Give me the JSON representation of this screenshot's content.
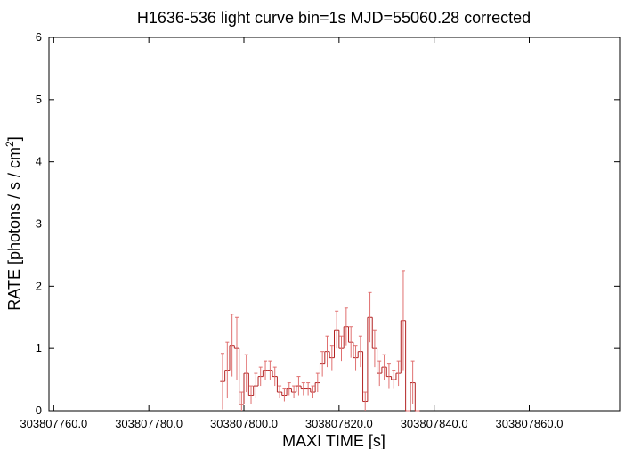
{
  "chart_data": {
    "type": "errorstep",
    "title": "H1636-536 light curve bin=1s MJD=55060.28 corrected",
    "x_label": "MAXI TIME [s]",
    "y_label": {
      "text": "RATE [photons / s / cm",
      "sup": "2",
      "end": "]"
    },
    "x": [
      303807795.5,
      303807796.5,
      303807797.5,
      303807798.5,
      303807799.5,
      303807800.5,
      303807801.5,
      303807802.5,
      303807803.5,
      303807804.5,
      303807805.5,
      303807806.5,
      303807807.5,
      303807808.5,
      303807809.5,
      303807810.5,
      303807811.5,
      303807812.5,
      303807813.5,
      303807814.5,
      303807815.5,
      303807816.5,
      303807817.5,
      303807818.5,
      303807819.5,
      303807820.5,
      303807821.5,
      303807822.5,
      303807823.5,
      303807824.5,
      303807825.5,
      303807826.5,
      303807827.5,
      303807828.5,
      303807829.5,
      303807830.5,
      303807831.5,
      303807832.5,
      303807833.5,
      303807834.5,
      303807835.5,
      303807836.5
    ],
    "values": [
      0.47,
      0.65,
      1.05,
      1.0,
      0.1,
      0.6,
      0.25,
      0.4,
      0.55,
      0.65,
      0.65,
      0.55,
      0.3,
      0.25,
      0.35,
      0.3,
      0.4,
      0.35,
      0.35,
      0.3,
      0.45,
      0.75,
      0.95,
      0.85,
      1.3,
      1.0,
      1.35,
      1.1,
      0.85,
      0.95,
      0.15,
      1.5,
      1.0,
      0.6,
      0.7,
      0.55,
      0.5,
      0.6,
      1.45,
      0.0,
      0.45,
      0.0
    ],
    "errors": [
      0.45,
      0.45,
      0.5,
      0.5,
      0.2,
      0.3,
      0.15,
      0.2,
      0.15,
      0.15,
      0.15,
      0.15,
      0.1,
      0.1,
      0.1,
      0.1,
      0.15,
      0.1,
      0.1,
      0.1,
      0.15,
      0.2,
      0.25,
      0.2,
      0.3,
      0.2,
      0.3,
      0.25,
      0.2,
      0.25,
      0.15,
      0.4,
      0.3,
      0.2,
      0.2,
      0.2,
      0.15,
      0.2,
      0.8,
      0.0,
      0.35,
      0.0
    ],
    "color": "#b22222",
    "error_color": "#e07070",
    "xlim": [
      303807759,
      303807879
    ],
    "ylim": [
      0,
      6
    ],
    "xticks": [
      {
        "value": 303807760,
        "label": "303807760.0"
      },
      {
        "value": 303807780,
        "label": "303807780.0"
      },
      {
        "value": 303807800,
        "label": "303807800.0"
      },
      {
        "value": 303807820,
        "label": "303807820.0"
      },
      {
        "value": 303807840,
        "label": "303807840.0"
      },
      {
        "value": 303807860,
        "label": "303807860.0"
      }
    ],
    "yticks": [
      0,
      1,
      2,
      3,
      4,
      5,
      6
    ]
  }
}
